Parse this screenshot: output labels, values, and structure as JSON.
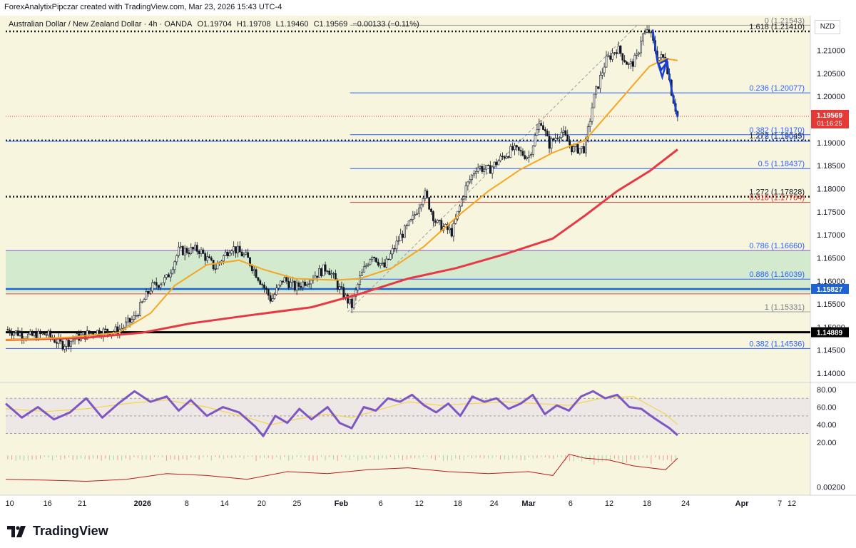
{
  "header": {
    "credit": "ForexAnalytixPipczar created with TradingView.com, Mar 23, 2026 15:43 UTC-4"
  },
  "symbol_bar": {
    "name": "Australian Dollar / New Zealand Dollar · 4h · OANDA",
    "open": "O1.19704",
    "high": "H1.19708",
    "low": "L1.19460",
    "close": "C1.19569",
    "change": "−0.00133 (−0.11%)"
  },
  "currency": "NZD",
  "footer": {
    "logo_text": "TradingView",
    "logo_icon": "tradingview-logo-icon"
  },
  "colors": {
    "background": "#f8f5de",
    "candle": "#131722",
    "ema_fast": "#f5a623",
    "ema_slow": "#e63946",
    "fib_blue": "#2962ff",
    "fib_red": "#e53935",
    "rsi": "#7e57c2",
    "rsi_ma": "#f5d547",
    "zone": "#c8e6c9",
    "price_badge": "#e53935",
    "blue_badge": "#1e63d6"
  },
  "chart_data": {
    "type": "candlestick",
    "title": "Australian Dollar / New Zealand Dollar · 4h · OANDA",
    "ylim": [
      1.138,
      1.2175
    ],
    "price_axis_ticks": [
      "1.21000",
      "1.20500",
      "1.20000",
      "1.19500",
      "1.19000",
      "1.18500",
      "1.18000",
      "1.17500",
      "1.17000",
      "1.16500",
      "1.16000",
      "1.15500",
      "1.15000",
      "1.14500",
      "1.14000"
    ],
    "price_axis_values": [
      1.21,
      1.205,
      1.2,
      1.195,
      1.19,
      1.185,
      1.18,
      1.175,
      1.17,
      1.165,
      1.16,
      1.155,
      1.15,
      1.145,
      1.14
    ],
    "time_axis": [
      {
        "label": "10",
        "t": 0.005
      },
      {
        "label": "16",
        "t": 0.052
      },
      {
        "label": "21",
        "t": 0.095
      },
      {
        "label": "2026",
        "t": 0.17,
        "bold": true
      },
      {
        "label": "8",
        "t": 0.225
      },
      {
        "label": "14",
        "t": 0.272
      },
      {
        "label": "20",
        "t": 0.318
      },
      {
        "label": "25",
        "t": 0.362
      },
      {
        "label": "Feb",
        "t": 0.417,
        "bold": true
      },
      {
        "label": "6",
        "t": 0.466
      },
      {
        "label": "12",
        "t": 0.514
      },
      {
        "label": "18",
        "t": 0.562
      },
      {
        "label": "24",
        "t": 0.607
      },
      {
        "label": "Mar",
        "t": 0.65,
        "bold": true
      },
      {
        "label": "6",
        "t": 0.702
      },
      {
        "label": "12",
        "t": 0.75
      },
      {
        "label": "18",
        "t": 0.797
      },
      {
        "label": "24",
        "t": 0.845
      },
      {
        "label": "Apr",
        "t": 0.915,
        "bold": true
      },
      {
        "label": "7",
        "t": 0.962
      },
      {
        "label": "12",
        "t": 1.005
      }
    ],
    "price_path": [
      [
        0,
        1.1495
      ],
      [
        0.03,
        1.148
      ],
      [
        0.05,
        1.1485
      ],
      [
        0.07,
        1.1462
      ],
      [
        0.09,
        1.1478
      ],
      [
        0.11,
        1.149
      ],
      [
        0.14,
        1.1492
      ],
      [
        0.16,
        1.152
      ],
      [
        0.18,
        1.1585
      ],
      [
        0.2,
        1.1605
      ],
      [
        0.215,
        1.1665
      ],
      [
        0.24,
        1.1668
      ],
      [
        0.26,
        1.1628
      ],
      [
        0.28,
        1.1675
      ],
      [
        0.3,
        1.165
      ],
      [
        0.32,
        1.159
      ],
      [
        0.33,
        1.1558
      ],
      [
        0.345,
        1.1605
      ],
      [
        0.36,
        1.1585
      ],
      [
        0.38,
        1.1608
      ],
      [
        0.4,
        1.163
      ],
      [
        0.415,
        1.1582
      ],
      [
        0.43,
        1.1545
      ],
      [
        0.44,
        1.1605
      ],
      [
        0.455,
        1.166
      ],
      [
        0.47,
        1.1628
      ],
      [
        0.49,
        1.1695
      ],
      [
        0.505,
        1.173
      ],
      [
        0.52,
        1.1792
      ],
      [
        0.535,
        1.1725
      ],
      [
        0.555,
        1.1705
      ],
      [
        0.57,
        1.1795
      ],
      [
        0.585,
        1.1848
      ],
      [
        0.6,
        1.184
      ],
      [
        0.615,
        1.1865
      ],
      [
        0.63,
        1.1885
      ],
      [
        0.65,
        1.187
      ],
      [
        0.665,
        1.195
      ],
      [
        0.675,
        1.1895
      ],
      [
        0.69,
        1.1925
      ],
      [
        0.705,
        1.1885
      ],
      [
        0.72,
        1.1888
      ],
      [
        0.73,
        1.199
      ],
      [
        0.745,
        1.2075
      ],
      [
        0.76,
        1.2105
      ],
      [
        0.775,
        1.2065
      ],
      [
        0.785,
        1.2085
      ],
      [
        0.79,
        1.213
      ],
      [
        0.8,
        1.2142
      ],
      [
        0.81,
        1.2085
      ],
      [
        0.82,
        1.2082
      ],
      [
        0.828,
        1.2005
      ],
      [
        0.835,
        1.1957
      ]
    ],
    "ema_fast_path": [
      [
        0,
        1.1472
      ],
      [
        0.08,
        1.1478
      ],
      [
        0.14,
        1.1488
      ],
      [
        0.18,
        1.153
      ],
      [
        0.21,
        1.159
      ],
      [
        0.25,
        1.1635
      ],
      [
        0.29,
        1.1645
      ],
      [
        0.32,
        1.1625
      ],
      [
        0.36,
        1.1605
      ],
      [
        0.41,
        1.1602
      ],
      [
        0.44,
        1.1605
      ],
      [
        0.48,
        1.1628
      ],
      [
        0.52,
        1.1675
      ],
      [
        0.56,
        1.1738
      ],
      [
        0.6,
        1.1795
      ],
      [
        0.64,
        1.1842
      ],
      [
        0.68,
        1.1878
      ],
      [
        0.72,
        1.1905
      ],
      [
        0.76,
        1.1985
      ],
      [
        0.8,
        1.2065
      ],
      [
        0.82,
        1.2082
      ],
      [
        0.835,
        1.2078
      ]
    ],
    "ema_slow_path": [
      [
        0,
        1.1472
      ],
      [
        0.1,
        1.1477
      ],
      [
        0.17,
        1.1488
      ],
      [
        0.23,
        1.1508
      ],
      [
        0.3,
        1.1525
      ],
      [
        0.38,
        1.1543
      ],
      [
        0.44,
        1.1572
      ],
      [
        0.5,
        1.1605
      ],
      [
        0.56,
        1.1628
      ],
      [
        0.62,
        1.1658
      ],
      [
        0.68,
        1.1692
      ],
      [
        0.72,
        1.1742
      ],
      [
        0.76,
        1.1795
      ],
      [
        0.8,
        1.1838
      ],
      [
        0.835,
        1.1885
      ]
    ],
    "blue_drawing_path": [
      [
        0.804,
        1.2145
      ],
      [
        0.81,
        1.2075
      ],
      [
        0.815,
        1.2058
      ],
      [
        0.822,
        1.2075
      ],
      [
        0.828,
        1.201
      ],
      [
        0.835,
        1.1955
      ]
    ],
    "blue_triangle": [
      [
        0.811,
        1.207
      ],
      [
        0.822,
        1.208
      ],
      [
        0.816,
        1.2042
      ]
    ],
    "fib_trend_line": [
      [
        0.425,
        1.1533
      ],
      [
        0.785,
        1.2155
      ]
    ],
    "levels": [
      {
        "label": "0 (1.21543)",
        "price": 1.21543,
        "color": "#9e9e9e",
        "style": "solid",
        "x_from": 0.428,
        "label_color": "#787b86"
      },
      {
        "label": "1.618 (1.21410)",
        "price": 1.2141,
        "color": "#131722",
        "style": "dotted",
        "x_from": 0,
        "label_color": "#131722"
      },
      {
        "label": "0.236 (1.20077)",
        "price": 1.20077,
        "color": "#2962ff",
        "style": "solid",
        "x_from": 0.428,
        "label_color": "#2962ff"
      },
      {
        "label": "0.382 (1.19170)",
        "price": 1.1917,
        "color": "#2962ff",
        "style": "solid",
        "x_from": 0.428,
        "label_color": "#2962ff"
      },
      {
        "label": "1.272 (1.19045)",
        "price": 1.19045,
        "color": "#131722",
        "style": "dotted",
        "x_from": 0,
        "label_color": "#131722"
      },
      {
        "label": "0.5 (1.19027)",
        "price": 1.19027,
        "color": "#2962ff",
        "style": "solid",
        "x_from": 0,
        "label_color": "#2962ff"
      },
      {
        "label": "0.5 (1.18437)",
        "price": 1.18437,
        "color": "#2962ff",
        "style": "solid",
        "x_from": 0.428,
        "label_color": "#2962ff"
      },
      {
        "label": "1.272 (1.17828)",
        "price": 1.17828,
        "color": "#131722",
        "style": "dotted",
        "x_from": 0,
        "label_color": "#131722"
      },
      {
        "label": "0.618 (1.17704)",
        "price": 1.17704,
        "color": "#e53935",
        "style": "solid",
        "x_from": 0.428,
        "label_color": "#e53935"
      },
      {
        "label": "0.786 (1.16660)",
        "price": 1.1666,
        "color": "#7e57c2",
        "style": "solid",
        "x_from": 0,
        "label_color": "#2962ff"
      },
      {
        "label": "0.886 (1.16039)",
        "price": 1.16039,
        "color": "#2962ff",
        "style": "solid",
        "x_from": 0.428,
        "label_color": "#2962ff"
      },
      {
        "label": "1 (1.15331)",
        "price": 1.15331,
        "color": "#9e9e9e",
        "style": "solid",
        "x_from": 0.428,
        "label_color": "#787b86"
      },
      {
        "label": "0.382 (1.14536)",
        "price": 1.14536,
        "color": "#2962ff",
        "style": "solid",
        "x_from": 0,
        "label_color": "#2962ff"
      }
    ],
    "horizontal_lines": [
      {
        "price": 1.15827,
        "color": "#1e63d6",
        "width": 2.5,
        "badge": "1.15827",
        "badge_color": "#1e63d6"
      },
      {
        "price": 1.14889,
        "color": "#000000",
        "width": 3,
        "badge": "1.14889",
        "badge_color": "#000000"
      },
      {
        "price": 1.1572,
        "color": "#e53935",
        "width": 1,
        "badge": "",
        "badge_color": ""
      }
    ],
    "zone": {
      "from": 1.1575,
      "to": 1.1666
    },
    "current_price": {
      "value": "1.19569",
      "timer": "01:16:25",
      "price": 1.19569
    },
    "rsi": {
      "ylim": [
        15,
        88
      ],
      "ticks": [
        "80.00",
        "60.00",
        "40.00",
        "20.00"
      ],
      "tick_values": [
        80,
        60,
        40,
        20
      ],
      "band": [
        30,
        70
      ],
      "mid": 50,
      "values": [
        [
          0,
          64
        ],
        [
          0.02,
          48
        ],
        [
          0.04,
          60
        ],
        [
          0.06,
          46
        ],
        [
          0.08,
          54
        ],
        [
          0.1,
          70
        ],
        [
          0.12,
          48
        ],
        [
          0.14,
          64
        ],
        [
          0.16,
          78
        ],
        [
          0.18,
          66
        ],
        [
          0.2,
          72
        ],
        [
          0.215,
          56
        ],
        [
          0.23,
          68
        ],
        [
          0.25,
          50
        ],
        [
          0.27,
          60
        ],
        [
          0.29,
          54
        ],
        [
          0.31,
          38
        ],
        [
          0.32,
          27
        ],
        [
          0.335,
          50
        ],
        [
          0.35,
          42
        ],
        [
          0.365,
          58
        ],
        [
          0.38,
          46
        ],
        [
          0.4,
          60
        ],
        [
          0.415,
          42
        ],
        [
          0.43,
          36
        ],
        [
          0.445,
          60
        ],
        [
          0.46,
          56
        ],
        [
          0.475,
          70
        ],
        [
          0.49,
          66
        ],
        [
          0.505,
          74
        ],
        [
          0.52,
          62
        ],
        [
          0.535,
          54
        ],
        [
          0.55,
          64
        ],
        [
          0.565,
          50
        ],
        [
          0.58,
          72
        ],
        [
          0.595,
          66
        ],
        [
          0.61,
          70
        ],
        [
          0.625,
          58
        ],
        [
          0.64,
          64
        ],
        [
          0.655,
          74
        ],
        [
          0.67,
          52
        ],
        [
          0.685,
          62
        ],
        [
          0.7,
          56
        ],
        [
          0.715,
          72
        ],
        [
          0.73,
          78
        ],
        [
          0.745,
          70
        ],
        [
          0.76,
          74
        ],
        [
          0.775,
          60
        ],
        [
          0.79,
          58
        ],
        [
          0.805,
          48
        ],
        [
          0.815,
          42
        ],
        [
          0.825,
          36
        ],
        [
          0.835,
          28
        ]
      ],
      "ma": [
        [
          0,
          58
        ],
        [
          0.05,
          55
        ],
        [
          0.1,
          58
        ],
        [
          0.15,
          64
        ],
        [
          0.2,
          68
        ],
        [
          0.25,
          60
        ],
        [
          0.3,
          48
        ],
        [
          0.33,
          40
        ],
        [
          0.36,
          46
        ],
        [
          0.4,
          52
        ],
        [
          0.43,
          48
        ],
        [
          0.46,
          56
        ],
        [
          0.5,
          66
        ],
        [
          0.54,
          62
        ],
        [
          0.58,
          64
        ],
        [
          0.62,
          66
        ],
        [
          0.66,
          64
        ],
        [
          0.7,
          62
        ],
        [
          0.74,
          70
        ],
        [
          0.78,
          72
        ],
        [
          0.8,
          62
        ],
        [
          0.82,
          52
        ],
        [
          0.835,
          40
        ]
      ]
    },
    "volume_osc": {
      "tick": "0.00200",
      "values": [
        [
          0,
          0.3
        ],
        [
          0.05,
          0.28
        ],
        [
          0.1,
          0.25
        ],
        [
          0.15,
          0.3
        ],
        [
          0.2,
          0.45
        ],
        [
          0.25,
          0.4
        ],
        [
          0.3,
          0.3
        ],
        [
          0.35,
          0.5
        ],
        [
          0.4,
          0.45
        ],
        [
          0.45,
          0.55
        ],
        [
          0.5,
          0.6
        ],
        [
          0.55,
          0.5
        ],
        [
          0.6,
          0.45
        ],
        [
          0.65,
          0.5
        ],
        [
          0.68,
          0.4
        ],
        [
          0.7,
          0.95
        ],
        [
          0.72,
          0.85
        ],
        [
          0.75,
          0.8
        ],
        [
          0.78,
          0.65
        ],
        [
          0.8,
          0.6
        ],
        [
          0.82,
          0.55
        ],
        [
          0.835,
          0.85
        ]
      ]
    }
  }
}
